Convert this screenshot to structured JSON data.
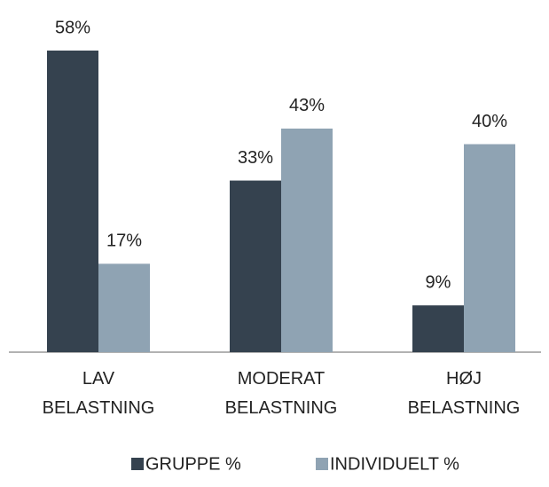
{
  "chart_data": {
    "type": "bar",
    "categories": [
      "LAV BELASTNING",
      "MODERAT BELASTNING",
      "HØJ BELASTNING"
    ],
    "series": [
      {
        "name": "GRUPPE %",
        "color": "#35424f",
        "values": [
          58,
          33,
          9
        ],
        "value_labels": [
          "58%",
          "33%",
          "9%"
        ]
      },
      {
        "name": "INDIVIDUELT %",
        "color": "#8fa3b3",
        "values": [
          17,
          43,
          40
        ],
        "value_labels": [
          "17%",
          "43%",
          "40%"
        ]
      }
    ],
    "legend": "bottom"
  }
}
